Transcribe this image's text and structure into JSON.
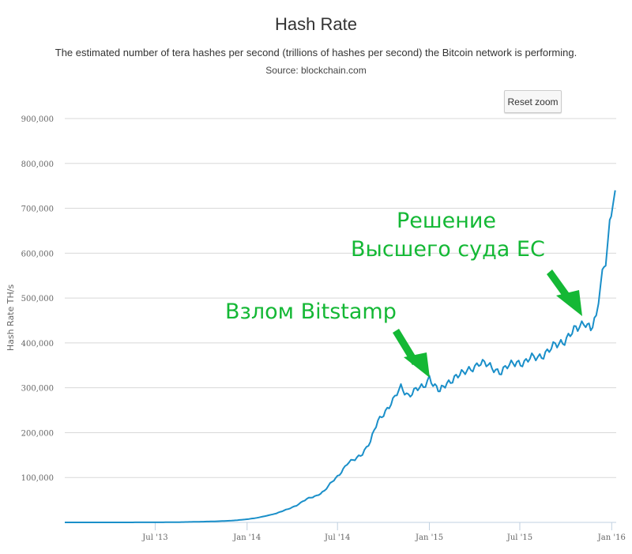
{
  "header": {
    "title": "Hash Rate",
    "subtitle": "The estimated number of tera hashes per second (trillions of hashes per second) the Bitcoin network is performing.",
    "source": "Source: blockchain.com"
  },
  "controls": {
    "reset_zoom_label": "Reset zoom"
  },
  "colors": {
    "series": "#1a8fc9",
    "grid": "#d8d8d8",
    "annotation": "#14b835"
  },
  "chart_data": {
    "type": "line",
    "title": "Hash Rate",
    "xlabel": "",
    "ylabel": "Hash Rate TH/s",
    "xlim": [
      "2013-01-01",
      "2016-01-10"
    ],
    "ylim": [
      0,
      900000
    ],
    "x_ticks": [
      "Jul '13",
      "Jan '14",
      "Jul '14",
      "Jan '15",
      "Jul '15",
      "Jan '16"
    ],
    "y_ticks": [
      "100,000",
      "200,000",
      "300,000",
      "400,000",
      "500,000",
      "600,000",
      "700,000",
      "800,000",
      "900,000"
    ],
    "grid": "horizontal",
    "legend": "none",
    "series": [
      {
        "x": [
          "2013-01-01",
          "2013-03-01",
          "2013-05-01",
          "2013-07-01",
          "2013-08-15",
          "2013-10-01",
          "2013-11-01",
          "2013-12-01",
          "2014-01-01",
          "2014-01-20",
          "2014-02-10",
          "2014-03-01",
          "2014-03-20",
          "2014-04-10",
          "2014-05-01",
          "2014-05-20",
          "2014-06-05",
          "2014-06-20",
          "2014-07-05",
          "2014-07-20",
          "2014-08-05",
          "2014-08-20",
          "2014-09-05",
          "2014-09-20",
          "2014-10-05",
          "2014-10-20",
          "2014-11-05",
          "2014-11-20",
          "2014-12-05",
          "2014-12-20",
          "2015-01-01",
          "2015-01-12",
          "2015-01-22",
          "2015-02-05",
          "2015-02-20",
          "2015-03-10",
          "2015-03-25",
          "2015-04-10",
          "2015-04-25",
          "2015-05-10",
          "2015-05-25",
          "2015-06-10",
          "2015-06-25",
          "2015-07-10",
          "2015-07-25",
          "2015-08-10",
          "2015-08-25",
          "2015-09-10",
          "2015-09-25",
          "2015-10-10",
          "2015-10-25",
          "2015-11-10",
          "2015-11-20",
          "2015-12-01",
          "2015-12-10",
          "2015-12-20",
          "2015-12-28",
          "2016-01-03",
          "2016-01-08"
        ],
        "values": [
          20,
          30,
          60,
          150,
          450,
          1500,
          2500,
          3800,
          7000,
          10000,
          15000,
          20000,
          28000,
          38000,
          52000,
          60000,
          70000,
          90000,
          108000,
          130000,
          140000,
          155000,
          180000,
          225000,
          250000,
          270000,
          300000,
          285000,
          295000,
          300000,
          325000,
          305000,
          290000,
          310000,
          325000,
          330000,
          345000,
          355000,
          350000,
          345000,
          335000,
          348000,
          360000,
          355000,
          365000,
          372000,
          380000,
          392000,
          405000,
          420000,
          430000,
          450000,
          435000,
          450000,
          530000,
          590000,
          670000,
          720000,
          740000
        ]
      }
    ],
    "annotations": [
      {
        "text": "Взлом Bitstamp",
        "x": "2015-01-01",
        "y": 325000
      },
      {
        "text": "Решение",
        "x": "2015-11-20",
        "y": 450000
      },
      {
        "text": "Высшего суда ЕС",
        "x": "2015-11-20",
        "y": 450000
      }
    ]
  }
}
